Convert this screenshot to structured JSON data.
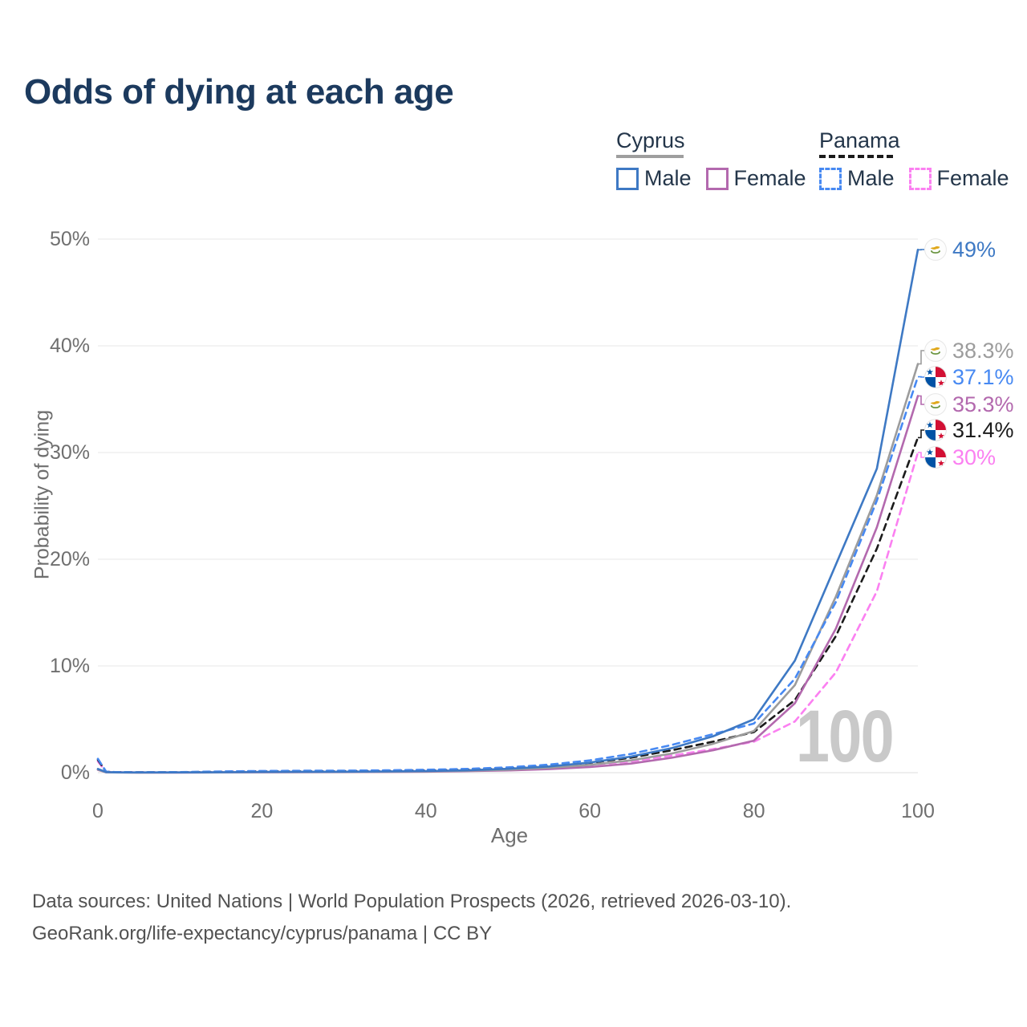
{
  "title": "Odds of dying at each age",
  "legend": {
    "groups": [
      {
        "country": "Cyprus",
        "line_style": "solid",
        "items": [
          {
            "label": "Male",
            "color": "#3e79c4"
          },
          {
            "label": "Female",
            "color": "#b369ae"
          }
        ]
      },
      {
        "country": "Panama",
        "line_style": "dashed",
        "items": [
          {
            "label": "Male",
            "color": "#4789f2"
          },
          {
            "label": "Female",
            "color": "#fb80f1"
          }
        ]
      }
    ]
  },
  "chart_data": {
    "type": "line",
    "title": "Odds of dying at each age",
    "xlabel": "Age",
    "ylabel": "Probability of dying",
    "xlim": [
      0,
      100
    ],
    "ylim": [
      0,
      50
    ],
    "grid": "horizontal",
    "legend_position": "top-right",
    "watermark": "100",
    "x_ticks": [
      "0",
      "20",
      "40",
      "60",
      "80",
      "100"
    ],
    "y_ticks": [
      "0%",
      "10%",
      "20%",
      "30%",
      "40%",
      "50%"
    ],
    "x": [
      0,
      1,
      2,
      5,
      10,
      15,
      20,
      25,
      30,
      35,
      40,
      45,
      50,
      55,
      60,
      65,
      70,
      75,
      80,
      85,
      90,
      95,
      100
    ],
    "series": [
      {
        "name": "Panama Female",
        "country": "Panama",
        "sex": "Female",
        "color": "#fb80f1",
        "dash": "dashed",
        "flag": "panama",
        "end_label": "30%",
        "values": [
          1.05,
          0.08,
          0.05,
          0.03,
          0.03,
          0.06,
          0.08,
          0.09,
          0.1,
          0.12,
          0.16,
          0.22,
          0.31,
          0.47,
          0.72,
          1.05,
          1.6,
          2.2,
          2.9,
          4.8,
          9.4,
          17.0,
          30.0
        ]
      },
      {
        "name": "Panama Both Sexes",
        "country": "Panama",
        "sex": "Both",
        "color": "#1b1b1b",
        "dash": "dashed",
        "flag": "panama",
        "end_label": "31.4%",
        "values": [
          1.2,
          0.09,
          0.05,
          0.03,
          0.04,
          0.08,
          0.12,
          0.13,
          0.14,
          0.17,
          0.21,
          0.28,
          0.4,
          0.6,
          0.92,
          1.4,
          2.1,
          2.9,
          3.8,
          6.8,
          12.8,
          21.0,
          31.4
        ]
      },
      {
        "name": "Cyprus Female",
        "country": "Cyprus",
        "sex": "Female",
        "color": "#b369ae",
        "dash": "solid",
        "flag": "cyprus",
        "end_label": "35.3%",
        "values": [
          0.26,
          0.03,
          0.02,
          0.01,
          0.01,
          0.02,
          0.03,
          0.04,
          0.05,
          0.07,
          0.09,
          0.14,
          0.21,
          0.33,
          0.53,
          0.85,
          1.4,
          2.1,
          3.0,
          6.5,
          13.5,
          23.0,
          35.3
        ]
      },
      {
        "name": "Cyprus Both Sexes",
        "country": "Cyprus",
        "sex": "Both",
        "color": "#9c9c9c",
        "dash": "solid",
        "flag": "cyprus",
        "end_label": "38.3%",
        "values": [
          0.3,
          0.04,
          0.02,
          0.01,
          0.02,
          0.03,
          0.05,
          0.06,
          0.07,
          0.09,
          0.12,
          0.18,
          0.28,
          0.45,
          0.73,
          1.15,
          1.8,
          2.7,
          3.9,
          8.2,
          16.5,
          26.0,
          38.3
        ]
      },
      {
        "name": "Panama Male",
        "country": "Panama",
        "sex": "Male",
        "color": "#4789f2",
        "dash": "dashed",
        "flag": "panama",
        "end_label": "37.1%",
        "values": [
          1.3,
          0.1,
          0.06,
          0.04,
          0.05,
          0.11,
          0.16,
          0.18,
          0.19,
          0.22,
          0.27,
          0.35,
          0.5,
          0.75,
          1.15,
          1.75,
          2.6,
          3.6,
          4.6,
          8.8,
          16.0,
          25.5,
          37.1
        ]
      },
      {
        "name": "Cyprus Male",
        "country": "Cyprus",
        "sex": "Male",
        "color": "#3e79c4",
        "dash": "solid",
        "flag": "cyprus",
        "end_label": "49%",
        "values": [
          0.35,
          0.05,
          0.03,
          0.02,
          0.02,
          0.04,
          0.07,
          0.08,
          0.09,
          0.11,
          0.15,
          0.22,
          0.36,
          0.58,
          0.95,
          1.5,
          2.3,
          3.4,
          5.0,
          10.5,
          19.5,
          28.5,
          49.0
        ]
      }
    ]
  },
  "footer": {
    "line1": "Data sources: United Nations | World Population Prospects (2026, retrieved 2026-03-10).",
    "line2": "GeoRank.org/life-expectancy/cyprus/panama | CC BY"
  }
}
